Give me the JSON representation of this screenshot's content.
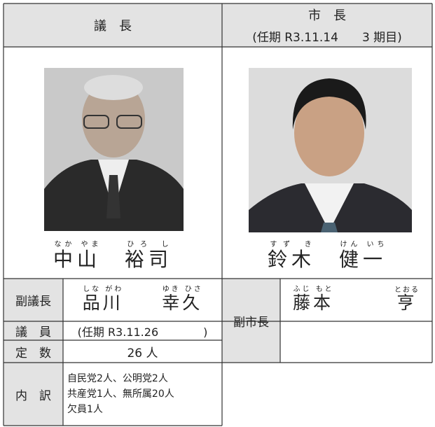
{
  "header": {
    "chair": "議　長",
    "mayor": "市　長",
    "mayor_term": "(任期 R3.11.14　　3 期目)"
  },
  "chair": {
    "family": {
      "kanji": "中山",
      "reading": "なか やま"
    },
    "given": {
      "kanji": "裕司",
      "reading": "ひろ し"
    }
  },
  "mayor": {
    "family": {
      "kanji": "鈴木",
      "reading": "すず き"
    },
    "given": {
      "kanji": "健一",
      "reading": "けん いち"
    }
  },
  "vice_chair": {
    "label": "副議長",
    "family": {
      "kanji": "品川",
      "reading": "しな がわ"
    },
    "given": {
      "kanji": "幸久",
      "reading": "ゆき ひさ"
    }
  },
  "members": {
    "label": "議　員",
    "value": "(任期 R3.11.26　　　　)"
  },
  "quota": {
    "label": "定　数",
    "value": "26 人"
  },
  "breakdown": {
    "label": "内　訳",
    "lines": [
      "自民党2人、公明党2人",
      "共産党1人、無所属20人",
      "欠員1人"
    ]
  },
  "vice_mayor": {
    "label": "副市長",
    "family": {
      "kanji": "藤本",
      "reading": "ふじ もと"
    },
    "given": {
      "kanji": "亨",
      "reading": "とおる"
    }
  }
}
